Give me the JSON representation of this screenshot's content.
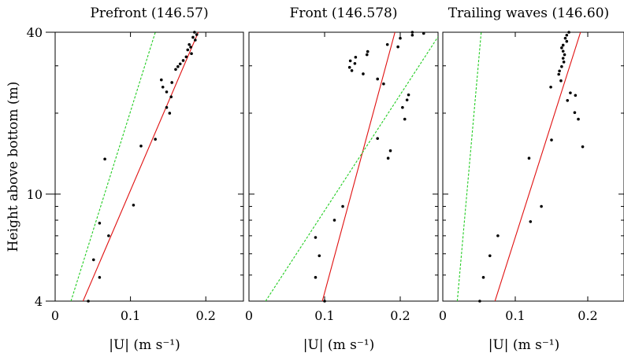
{
  "chart_data": [
    {
      "type": "scatter",
      "title": "Prefront (146.57)",
      "xlabel": "|U| (m s⁻¹)",
      "ylabel": "Height above bottom (m)",
      "xlim": [
        0,
        0.25
      ],
      "ylim": [
        4,
        40
      ],
      "yscale": "log",
      "xticks": [
        "0",
        "0.1",
        "0.2"
      ],
      "yticks": [
        "4",
        "10",
        "40"
      ],
      "points": [
        {
          "x": 0.185,
          "y": 40
        },
        {
          "x": 0.188,
          "y": 39.2
        },
        {
          "x": 0.183,
          "y": 38.3
        },
        {
          "x": 0.186,
          "y": 37.4
        },
        {
          "x": 0.178,
          "y": 36.0
        },
        {
          "x": 0.18,
          "y": 35.2
        },
        {
          "x": 0.176,
          "y": 34.4
        },
        {
          "x": 0.181,
          "y": 33.3
        },
        {
          "x": 0.174,
          "y": 32.4
        },
        {
          "x": 0.17,
          "y": 31.4
        },
        {
          "x": 0.166,
          "y": 30.5
        },
        {
          "x": 0.163,
          "y": 29.8
        },
        {
          "x": 0.16,
          "y": 29.1
        },
        {
          "x": 0.141,
          "y": 26.6
        },
        {
          "x": 0.155,
          "y": 26.0
        },
        {
          "x": 0.143,
          "y": 25.0
        },
        {
          "x": 0.148,
          "y": 24.0
        },
        {
          "x": 0.154,
          "y": 23.0
        },
        {
          "x": 0.148,
          "y": 21.0
        },
        {
          "x": 0.152,
          "y": 20.0
        },
        {
          "x": 0.133,
          "y": 16.0
        },
        {
          "x": 0.114,
          "y": 15.1
        },
        {
          "x": 0.066,
          "y": 13.5
        },
        {
          "x": 0.104,
          "y": 9.1
        },
        {
          "x": 0.059,
          "y": 7.8
        },
        {
          "x": 0.071,
          "y": 7.0
        },
        {
          "x": 0.051,
          "y": 5.7
        },
        {
          "x": 0.059,
          "y": 4.9
        },
        {
          "x": 0.044,
          "y": 4.0
        }
      ],
      "fits": [
        {
          "color": "#e01010",
          "style": "solid",
          "points": [
            [
              0.037,
              4
            ],
            [
              0.19,
              40
            ]
          ]
        },
        {
          "color": "#22cc22",
          "style": "dashed",
          "points": [
            [
              0.021,
              4
            ],
            [
              0.133,
              40
            ]
          ]
        }
      ]
    },
    {
      "type": "scatter",
      "title": "Front (146.578)",
      "xlabel": "|U| (m s⁻¹)",
      "xlim": [
        0,
        0.25
      ],
      "ylim": [
        4,
        40
      ],
      "yscale": "log",
      "xticks": [
        "0",
        "0.1",
        "0.2"
      ],
      "points": [
        {
          "x": 0.216,
          "y": 40
        },
        {
          "x": 0.231,
          "y": 39.6
        },
        {
          "x": 0.216,
          "y": 39.0
        },
        {
          "x": 0.2,
          "y": 38.0
        },
        {
          "x": 0.183,
          "y": 36.0
        },
        {
          "x": 0.197,
          "y": 35.3
        },
        {
          "x": 0.157,
          "y": 33.9
        },
        {
          "x": 0.156,
          "y": 33.0
        },
        {
          "x": 0.141,
          "y": 32.3
        },
        {
          "x": 0.134,
          "y": 31.3
        },
        {
          "x": 0.14,
          "y": 30.6
        },
        {
          "x": 0.133,
          "y": 29.6
        },
        {
          "x": 0.136,
          "y": 28.8
        },
        {
          "x": 0.151,
          "y": 28.0
        },
        {
          "x": 0.17,
          "y": 26.8
        },
        {
          "x": 0.178,
          "y": 25.7
        },
        {
          "x": 0.211,
          "y": 23.4
        },
        {
          "x": 0.209,
          "y": 22.4
        },
        {
          "x": 0.203,
          "y": 21.0
        },
        {
          "x": 0.206,
          "y": 19.0
        },
        {
          "x": 0.17,
          "y": 16.1
        },
        {
          "x": 0.187,
          "y": 14.5
        },
        {
          "x": 0.184,
          "y": 13.6
        },
        {
          "x": 0.124,
          "y": 9.0
        },
        {
          "x": 0.113,
          "y": 8.0
        },
        {
          "x": 0.088,
          "y": 6.9
        },
        {
          "x": 0.093,
          "y": 5.9
        },
        {
          "x": 0.088,
          "y": 4.9
        },
        {
          "x": 0.1,
          "y": 4.0
        }
      ],
      "fits": [
        {
          "color": "#e01010",
          "style": "solid",
          "points": [
            [
              0.097,
              4
            ],
            [
              0.193,
              40
            ]
          ]
        },
        {
          "color": "#22cc22",
          "style": "dashed",
          "points": [
            [
              0.022,
              4
            ],
            [
              0.25,
              38.5
            ]
          ]
        }
      ]
    },
    {
      "type": "scatter",
      "title": "Trailing waves (146.60)",
      "xlabel": "|U| (m s⁻¹)",
      "xlim": [
        0,
        0.25
      ],
      "ylim": [
        4,
        40
      ],
      "yscale": "log",
      "xticks": [
        "0",
        "0.1",
        "0.2"
      ],
      "points": [
        {
          "x": 0.174,
          "y": 40
        },
        {
          "x": 0.171,
          "y": 39.0
        },
        {
          "x": 0.169,
          "y": 38.0
        },
        {
          "x": 0.171,
          "y": 37.0
        },
        {
          "x": 0.166,
          "y": 35.8
        },
        {
          "x": 0.164,
          "y": 35.0
        },
        {
          "x": 0.166,
          "y": 34.0
        },
        {
          "x": 0.168,
          "y": 33.0
        },
        {
          "x": 0.166,
          "y": 32.0
        },
        {
          "x": 0.167,
          "y": 31.0
        },
        {
          "x": 0.164,
          "y": 29.8
        },
        {
          "x": 0.161,
          "y": 28.7
        },
        {
          "x": 0.16,
          "y": 27.9
        },
        {
          "x": 0.163,
          "y": 26.4
        },
        {
          "x": 0.149,
          "y": 25.0
        },
        {
          "x": 0.176,
          "y": 23.8
        },
        {
          "x": 0.183,
          "y": 23.3
        },
        {
          "x": 0.172,
          "y": 22.3
        },
        {
          "x": 0.182,
          "y": 20.1
        },
        {
          "x": 0.187,
          "y": 19.0
        },
        {
          "x": 0.15,
          "y": 15.9
        },
        {
          "x": 0.193,
          "y": 15.0
        },
        {
          "x": 0.119,
          "y": 13.6
        },
        {
          "x": 0.136,
          "y": 9.0
        },
        {
          "x": 0.121,
          "y": 7.9
        },
        {
          "x": 0.076,
          "y": 7.0
        },
        {
          "x": 0.065,
          "y": 5.9
        },
        {
          "x": 0.056,
          "y": 4.9
        },
        {
          "x": 0.051,
          "y": 4.0
        }
      ],
      "fits": [
        {
          "color": "#e01010",
          "style": "solid",
          "points": [
            [
              0.072,
              4
            ],
            [
              0.19,
              40
            ]
          ]
        },
        {
          "color": "#22cc22",
          "style": "dashed",
          "points": [
            [
              0.02,
              4
            ],
            [
              0.053,
              40
            ]
          ]
        }
      ]
    }
  ]
}
